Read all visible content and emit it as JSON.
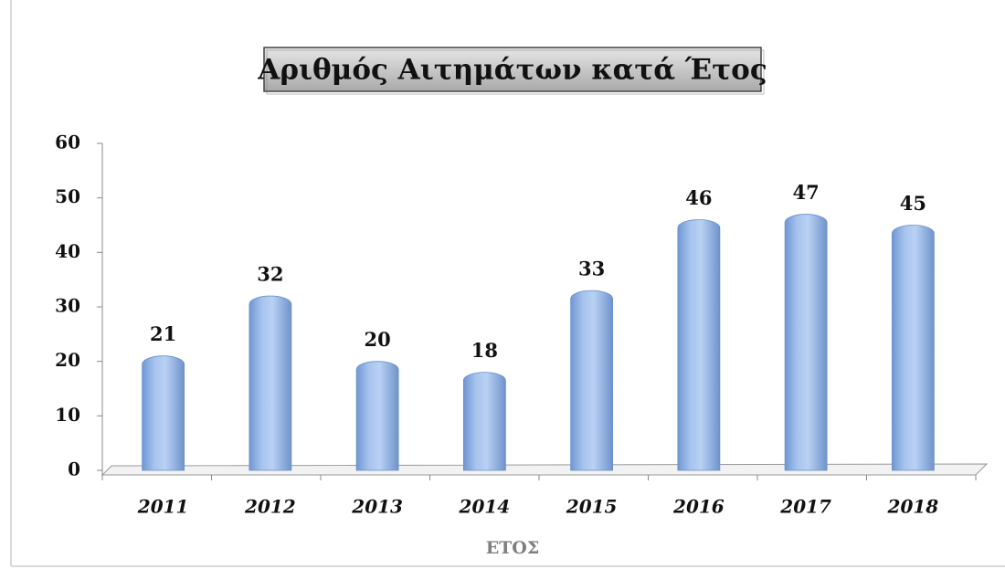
{
  "chart_data": {
    "type": "bar",
    "title": "Αριθμός Αιτημάτων κατά Έτος",
    "categories": [
      "2011",
      "2012",
      "2013",
      "2014",
      "2015",
      "2016",
      "2017",
      "2018"
    ],
    "values": [
      21,
      32,
      20,
      18,
      33,
      46,
      47,
      45
    ],
    "color": "#8fb2e4",
    "x_label": "ΕΤΟΣ",
    "ylim": [
      0,
      60
    ],
    "yticks": [
      0,
      10,
      20,
      30,
      40,
      50,
      60
    ],
    "grid": false
  }
}
